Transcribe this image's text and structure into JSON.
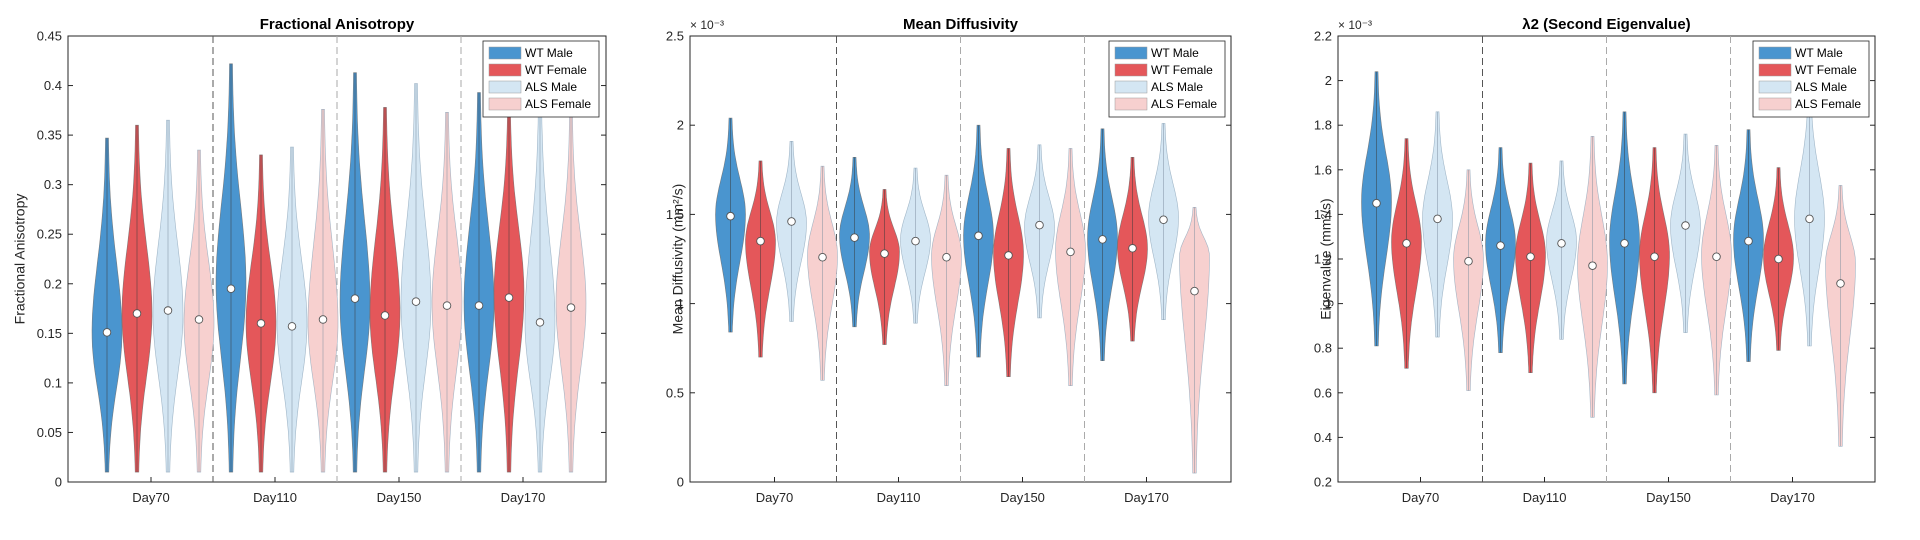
{
  "chart_data": [
    {
      "type": "violin",
      "title": "Fractional Anisotropy",
      "ylabel": "Fractional Anisotropy",
      "ylim": [
        0,
        0.45
      ],
      "yticks": [
        0,
        0.05,
        0.1,
        0.15,
        0.2,
        0.25,
        0.3,
        0.35,
        0.4,
        0.45
      ],
      "ytick_labels": [
        "0",
        "0.05",
        "0.1",
        "0.15",
        "0.2",
        "0.25",
        "0.3",
        "0.35",
        "0.4",
        "0.45"
      ],
      "exponent_label": "",
      "categories": [
        "Day70",
        "Day110",
        "Day150",
        "Day170"
      ],
      "series": [
        {
          "name": "WT Male",
          "color": "#4a95cf",
          "median": [
            0.151,
            0.195,
            0.185,
            0.178
          ],
          "min": [
            0.01,
            0.01,
            0.01,
            0.01
          ],
          "max": [
            0.347,
            0.422,
            0.413,
            0.393
          ],
          "mode": [
            0.15,
            0.2,
            0.18,
            0.18
          ]
        },
        {
          "name": "WT Female",
          "color": "#e4575a",
          "median": [
            0.17,
            0.16,
            0.168,
            0.186
          ],
          "min": [
            0.01,
            0.01,
            0.01,
            0.01
          ],
          "max": [
            0.36,
            0.33,
            0.378,
            0.376
          ],
          "mode": [
            0.17,
            0.16,
            0.17,
            0.19
          ]
        },
        {
          "name": "ALS Male",
          "color": "#d4e6f3",
          "median": [
            0.173,
            0.157,
            0.182,
            0.161
          ],
          "min": [
            0.01,
            0.01,
            0.01,
            0.01
          ],
          "max": [
            0.365,
            0.338,
            0.402,
            0.39
          ],
          "mode": [
            0.17,
            0.16,
            0.18,
            0.16
          ]
        },
        {
          "name": "ALS Female",
          "color": "#f7d0cf",
          "median": [
            0.164,
            0.164,
            0.178,
            0.176
          ],
          "min": [
            0.01,
            0.01,
            0.01,
            0.01
          ],
          "max": [
            0.335,
            0.376,
            0.373,
            0.37
          ],
          "mode": [
            0.16,
            0.16,
            0.18,
            0.18
          ]
        }
      ]
    },
    {
      "type": "violin",
      "title": "Mean Diffusivity",
      "ylabel": "Mean Diffusivity (mm²/s)",
      "ylim": [
        0,
        2.5
      ],
      "yticks": [
        0,
        0.5,
        1,
        1.5,
        2,
        2.5
      ],
      "ytick_labels": [
        "0",
        "0.5",
        "1",
        "1.5",
        "2",
        "2.5"
      ],
      "exponent_label": "× 10⁻³",
      "categories": [
        "Day70",
        "Day110",
        "Day150",
        "Day170"
      ],
      "series": [
        {
          "name": "WT Male",
          "color": "#4a95cf",
          "median": [
            1.49,
            1.37,
            1.38,
            1.36
          ],
          "min": [
            0.84,
            0.87,
            0.7,
            0.68
          ],
          "max": [
            2.04,
            1.82,
            2.0,
            1.98
          ],
          "mode": [
            1.5,
            1.38,
            1.38,
            1.37
          ]
        },
        {
          "name": "WT Female",
          "color": "#e4575a",
          "median": [
            1.35,
            1.28,
            1.27,
            1.31
          ],
          "min": [
            0.7,
            0.77,
            0.59,
            0.79
          ],
          "max": [
            1.8,
            1.64,
            1.87,
            1.82
          ],
          "mode": [
            1.35,
            1.29,
            1.28,
            1.31
          ]
        },
        {
          "name": "ALS Male",
          "color": "#d4e6f3",
          "median": [
            1.46,
            1.35,
            1.44,
            1.47
          ],
          "min": [
            0.9,
            0.89,
            0.92,
            0.91
          ],
          "max": [
            1.91,
            1.76,
            1.89,
            2.01
          ],
          "mode": [
            1.45,
            1.36,
            1.43,
            1.48
          ]
        },
        {
          "name": "ALS Female",
          "color": "#f7d0cf",
          "median": [
            1.26,
            1.26,
            1.29,
            1.07
          ],
          "min": [
            0.57,
            0.54,
            0.54,
            0.05
          ],
          "max": [
            1.77,
            1.72,
            1.87,
            1.54
          ],
          "mode": [
            1.27,
            1.27,
            1.3,
            1.27
          ]
        }
      ]
    },
    {
      "type": "violin",
      "title": "λ2 (Second Eigenvalue)",
      "ylabel": "Eigenvalue (mm²/s)",
      "ylim": [
        0.2,
        2.2
      ],
      "yticks": [
        0.2,
        0.4,
        0.6,
        0.8,
        1,
        1.2,
        1.4,
        1.6,
        1.8,
        2,
        2.2
      ],
      "ytick_labels": [
        "0.2",
        "0.4",
        "0.6",
        "0.8",
        "1",
        "1.2",
        "1.4",
        "1.6",
        "1.8",
        "2",
        "2.2"
      ],
      "exponent_label": "× 10⁻³",
      "categories": [
        "Day70",
        "Day110",
        "Day150",
        "Day170"
      ],
      "series": [
        {
          "name": "WT Male",
          "color": "#4a95cf",
          "median": [
            1.45,
            1.26,
            1.27,
            1.28
          ],
          "min": [
            0.81,
            0.78,
            0.64,
            0.74
          ],
          "max": [
            2.04,
            1.7,
            1.86,
            1.78
          ],
          "mode": [
            1.46,
            1.27,
            1.28,
            1.29
          ]
        },
        {
          "name": "WT Female",
          "color": "#e4575a",
          "median": [
            1.27,
            1.21,
            1.21,
            1.2
          ],
          "min": [
            0.71,
            0.69,
            0.6,
            0.79
          ],
          "max": [
            1.74,
            1.63,
            1.7,
            1.61
          ],
          "mode": [
            1.28,
            1.22,
            1.22,
            1.21
          ]
        },
        {
          "name": "ALS Male",
          "color": "#d4e6f3",
          "median": [
            1.38,
            1.27,
            1.35,
            1.38
          ],
          "min": [
            0.85,
            0.84,
            0.87,
            0.81
          ],
          "max": [
            1.86,
            1.64,
            1.76,
            1.96
          ],
          "mode": [
            1.38,
            1.28,
            1.35,
            1.38
          ]
        },
        {
          "name": "ALS Female",
          "color": "#f7d0cf",
          "median": [
            1.19,
            1.17,
            1.21,
            1.09
          ],
          "min": [
            0.61,
            0.49,
            0.59,
            0.36
          ],
          "max": [
            1.6,
            1.75,
            1.71,
            1.53
          ],
          "mode": [
            1.2,
            1.18,
            1.22,
            1.18
          ]
        }
      ]
    }
  ]
}
